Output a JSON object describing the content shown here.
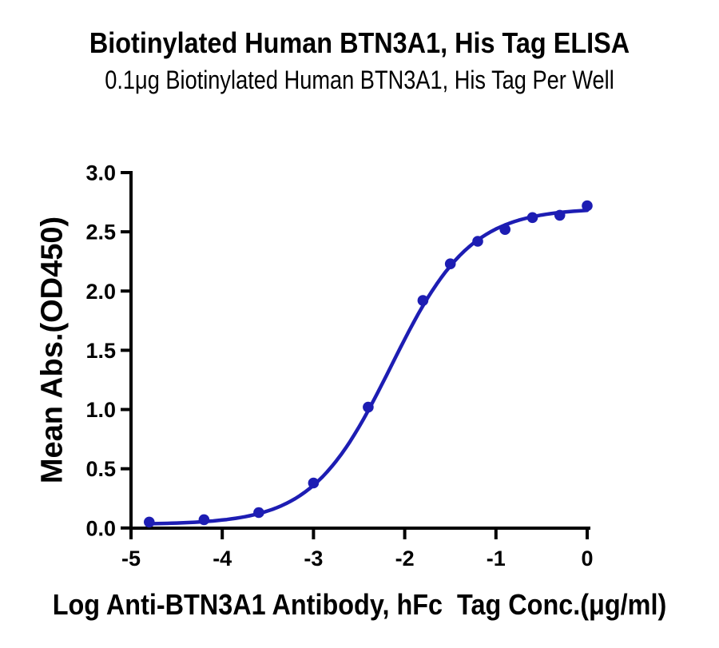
{
  "chart_data": {
    "type": "scatter",
    "title": "Biotinylated Human BTN3A1, His Tag ELISA",
    "subtitle": "0.1μg Biotinylated Human BTN3A1, His Tag Per Well",
    "xlabel": "Log Anti-BTN3A1 Antibody, hFc  Tag Conc.(μg/ml)",
    "ylabel": "Mean Abs.(OD450)",
    "x": [
      -4.8,
      -4.2,
      -3.6,
      -3.0,
      -2.4,
      -1.8,
      -1.5,
      -1.2,
      -0.9,
      -0.6,
      -0.3,
      0.0
    ],
    "y": [
      0.05,
      0.07,
      0.13,
      0.38,
      1.02,
      1.92,
      2.23,
      2.42,
      2.52,
      2.62,
      2.64,
      2.72
    ],
    "xlim": [
      -5,
      0
    ],
    "ylim": [
      0,
      3
    ],
    "x_ticks": [
      -5,
      -4,
      -3,
      -2,
      -1,
      0
    ],
    "x_tick_labels": [
      "-5",
      "-4",
      "-3",
      "-2",
      "-1",
      "0"
    ],
    "y_ticks": [
      0,
      0.5,
      1,
      1.5,
      2,
      2.5,
      3
    ],
    "y_tick_labels": [
      "0.0",
      "0.5",
      "1.0",
      "1.5",
      "2.0",
      "2.5",
      "3.0"
    ],
    "curve_fit": {
      "model": "4PL",
      "bottom": 0.03,
      "top": 2.7,
      "log_ec50": -2.15,
      "hill": 1.0
    },
    "colors": {
      "line": "#1d1db3",
      "marker": "#1d1db3",
      "axis": "#000000",
      "text": "#000000"
    },
    "grid": false,
    "legend": false
  }
}
